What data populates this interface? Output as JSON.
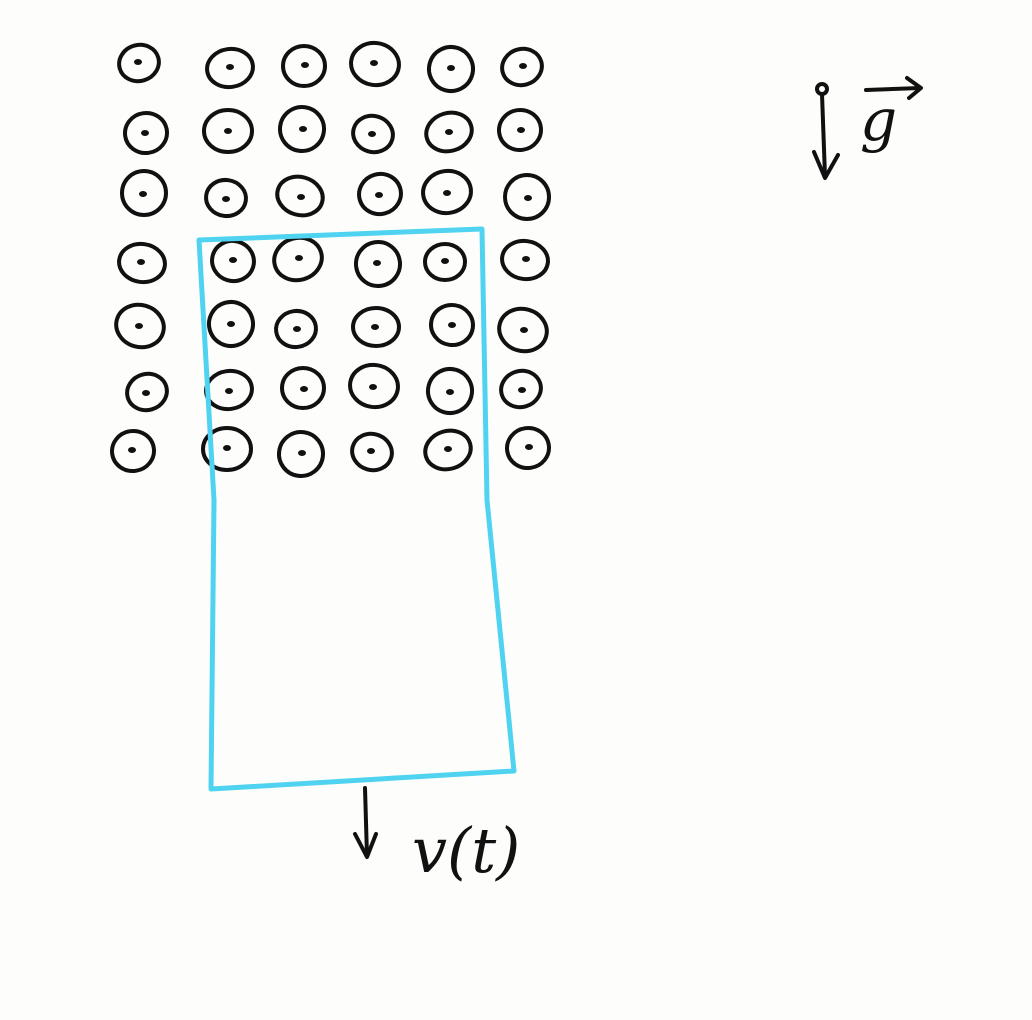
{
  "diagram": {
    "velocity_label": "v(t)",
    "gravity_label": "g",
    "grid": {
      "rows": 7,
      "columns": 6
    },
    "colors": {
      "ink": "#111111",
      "frame": "#4fd3f0",
      "background": "#fdfefb"
    }
  }
}
